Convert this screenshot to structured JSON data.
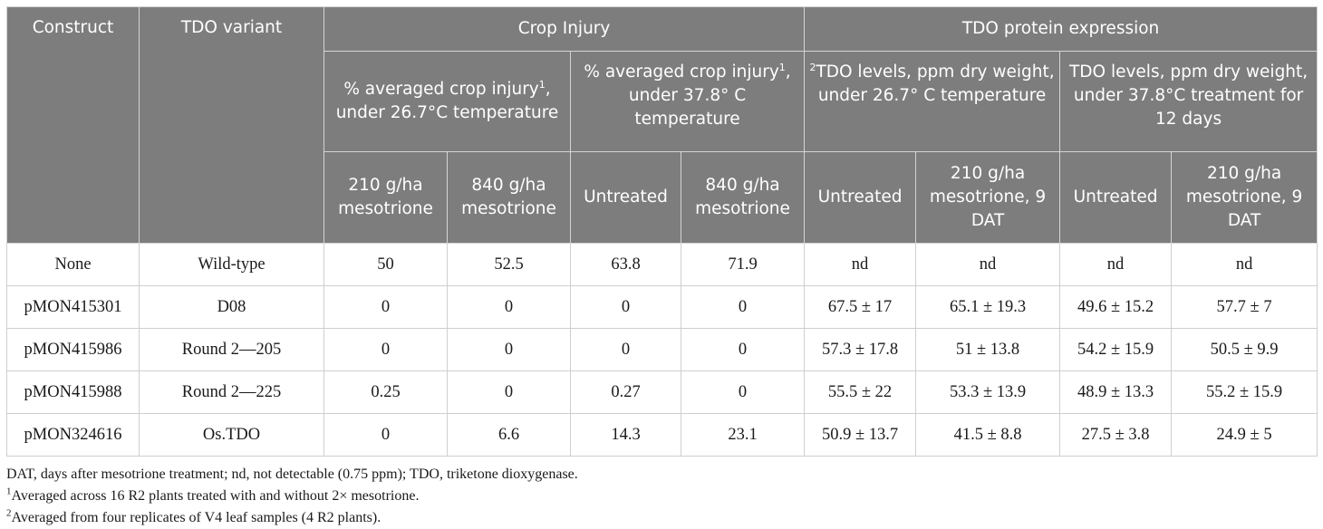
{
  "header": {
    "construct": "Construct",
    "variant": "TDO variant",
    "crop_injury": "Crop Injury",
    "tdo_expression": "TDO protein expression",
    "ci_26_text": "% averaged crop injury",
    "ci_26_sup": "1",
    "ci_26_tail": ", under 26.7°C temperature",
    "ci_37_text": "% averaged crop injury",
    "ci_37_sup": "1",
    "ci_37_tail": ", under 37.8° C temperature",
    "tdo_26_sup": "2",
    "tdo_26_text": "TDO levels, ppm dry weight, under 26.7° C temperature",
    "tdo_37_text": "TDO levels, ppm dry weight, under 37.8°C treatment for 12 days",
    "sub": [
      "210 g/ha mesotrione",
      "840 g/ha mesotrione",
      "Untreated",
      "840 g/ha mesotrione",
      "Untreated",
      "210 g/ha mesotrione, 9 DAT",
      "Untreated",
      "210 g/ha mesotrione, 9 DAT"
    ]
  },
  "rows": [
    [
      "None",
      "Wild-type",
      "50",
      "52.5",
      "63.8",
      "71.9",
      "nd",
      "nd",
      "nd",
      "nd"
    ],
    [
      "pMON415301",
      "D08",
      "0",
      "0",
      "0",
      "0",
      "67.5 ± 17",
      "65.1 ± 19.3",
      "49.6 ± 15.2",
      "57.7 ± 7"
    ],
    [
      "pMON415986",
      "Round 2—205",
      "0",
      "0",
      "0",
      "0",
      "57.3 ± 17.8",
      "51 ± 13.8",
      "54.2 ± 15.9",
      "50.5 ± 9.9"
    ],
    [
      "pMON415988",
      "Round 2—225",
      "0.25",
      "0",
      "0.27",
      "0",
      "55.5 ± 22",
      "53.3 ± 13.9",
      "48.9 ± 13.3",
      "55.2 ± 15.9"
    ],
    [
      "pMON324616",
      "Os.TDO",
      "0",
      "6.6",
      "14.3",
      "23.1",
      "50.9 ± 13.7",
      "41.5 ± 8.8",
      "27.5 ± 3.8",
      "24.9 ± 5"
    ]
  ],
  "notes": {
    "line1": "DAT, days after mesotrione treatment; nd, not detectable (0.75 ppm); TDO, triketone dioxygenase.",
    "fn1_mark": "1",
    "fn1_text": "Averaged across 16 R2 plants treated with and without 2× mesotrione.",
    "fn2_mark": "2",
    "fn2_text": "Averaged from four replicates of V4 leaf samples (4 R2 plants)."
  }
}
